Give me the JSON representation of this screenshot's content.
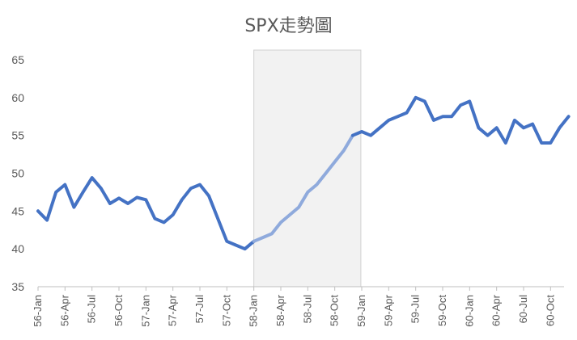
{
  "chart_data": {
    "type": "line",
    "title": "SPX走勢圖",
    "xlabel": "",
    "ylabel": "",
    "ylim": [
      35,
      65
    ],
    "y_ticks": [
      35,
      40,
      45,
      50,
      55,
      60,
      65
    ],
    "x_tick_labels": [
      "56-Jan",
      "56-Apr",
      "56-Jul",
      "56-Oct",
      "57-Jan",
      "57-Apr",
      "57-Jul",
      "57-Oct",
      "58-Jan",
      "58-Apr",
      "58-Jul",
      "58-Oct",
      "59-Jan",
      "59-Apr",
      "59-Jul",
      "59-Oct",
      "60-Jan",
      "60-Apr",
      "60-Jul",
      "60-Oct"
    ],
    "grid": false,
    "legend": "none",
    "highlight_range": {
      "start": "58-Jan",
      "end": "58-Dec",
      "color": "#f2f2f2"
    },
    "line_color": "#4472c4",
    "highlight_line_color": "#8faadc",
    "series": [
      {
        "x": [
          "1956-01",
          "1956-02",
          "1956-03",
          "1956-04",
          "1956-05",
          "1956-06",
          "1956-07",
          "1956-08",
          "1956-09",
          "1956-10",
          "1956-11",
          "1956-12",
          "1957-01",
          "1957-02",
          "1957-03",
          "1957-04",
          "1957-05",
          "1957-06",
          "1957-07",
          "1957-08",
          "1957-09",
          "1957-10",
          "1957-11",
          "1957-12",
          "1958-01",
          "1958-02",
          "1958-03",
          "1958-04",
          "1958-05",
          "1958-06",
          "1958-07",
          "1958-08",
          "1958-09",
          "1958-10",
          "1958-11",
          "1958-12",
          "1959-01",
          "1959-02",
          "1959-03",
          "1959-04",
          "1959-05",
          "1959-06",
          "1959-07",
          "1959-08",
          "1959-09",
          "1959-10",
          "1959-11",
          "1959-12",
          "1960-01",
          "1960-02",
          "1960-03",
          "1960-04",
          "1960-05",
          "1960-06",
          "1960-07",
          "1960-08",
          "1960-09",
          "1960-10",
          "1960-11",
          "1960-12"
        ],
        "values": [
          45.0,
          43.8,
          47.5,
          48.5,
          45.5,
          47.5,
          49.4,
          48.0,
          46.0,
          46.7,
          46.0,
          46.8,
          46.5,
          44.0,
          43.5,
          44.5,
          46.5,
          48.0,
          48.5,
          47.0,
          44.0,
          41.0,
          40.5,
          40.0,
          41.0,
          41.5,
          42.0,
          43.5,
          44.5,
          45.5,
          47.5,
          48.5,
          50.0,
          51.5,
          53.0,
          55.0,
          55.5,
          55.0,
          56.0,
          57.0,
          57.5,
          58.0,
          60.0,
          59.5,
          57.0,
          57.5,
          57.5,
          59.0,
          59.5,
          56.0,
          55.0,
          56.0,
          54.0,
          57.0,
          56.0,
          56.5,
          54.0,
          54.0,
          56.0,
          57.5
        ]
      }
    ]
  }
}
